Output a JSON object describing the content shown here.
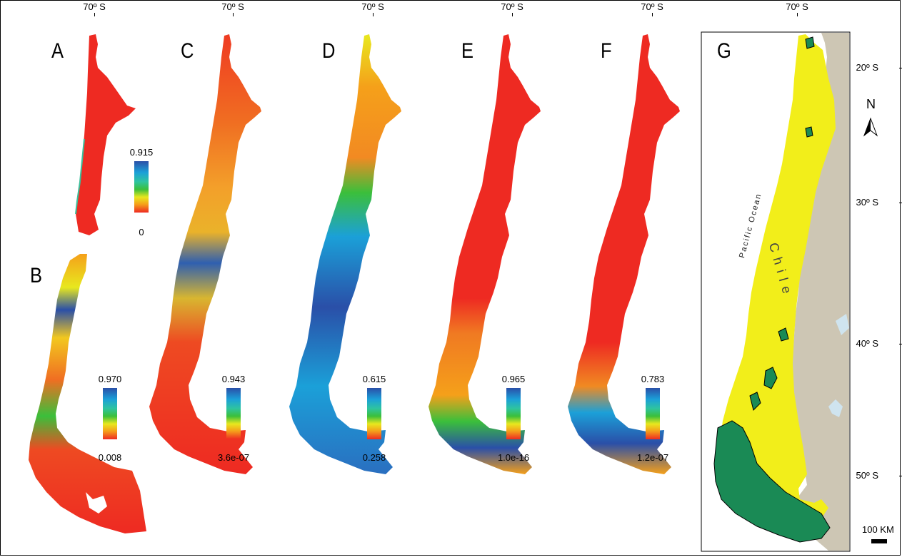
{
  "longitude_label": "70º S",
  "latitude_labels": [
    "20º S",
    "30º S",
    "40º S",
    "50º S"
  ],
  "north_label": "N",
  "scale_label": "100 KM",
  "ocean_label": "Pacific Ocean",
  "country_label": "Chile",
  "panels": [
    {
      "letter": "A",
      "legend_max": "0.915",
      "legend_min": "0"
    },
    {
      "letter": "B",
      "legend_max": "0.970",
      "legend_min": "0.008"
    },
    {
      "letter": "C",
      "legend_max": "0.943",
      "legend_min": "3.6e-07"
    },
    {
      "letter": "D",
      "legend_max": "0.615",
      "legend_min": "0.258"
    },
    {
      "letter": "E",
      "legend_max": "0.965",
      "legend_min": "1.0e-16"
    },
    {
      "letter": "F",
      "legend_max": "0.783",
      "legend_min": "1.2e-07"
    },
    {
      "letter": "G"
    }
  ],
  "colors": {
    "low": "#ee2a22",
    "mid_low": "#f5a01a",
    "mid": "#e8e81e",
    "mid_high": "#3bbf3b",
    "high_teal": "#1ba0d8",
    "high": "#2a4fa8",
    "chile_fill": "#f2ee1a",
    "land_fill": "#cdc6b4",
    "patch_fill": "#1a8a55",
    "water": "#cfe4ef"
  }
}
